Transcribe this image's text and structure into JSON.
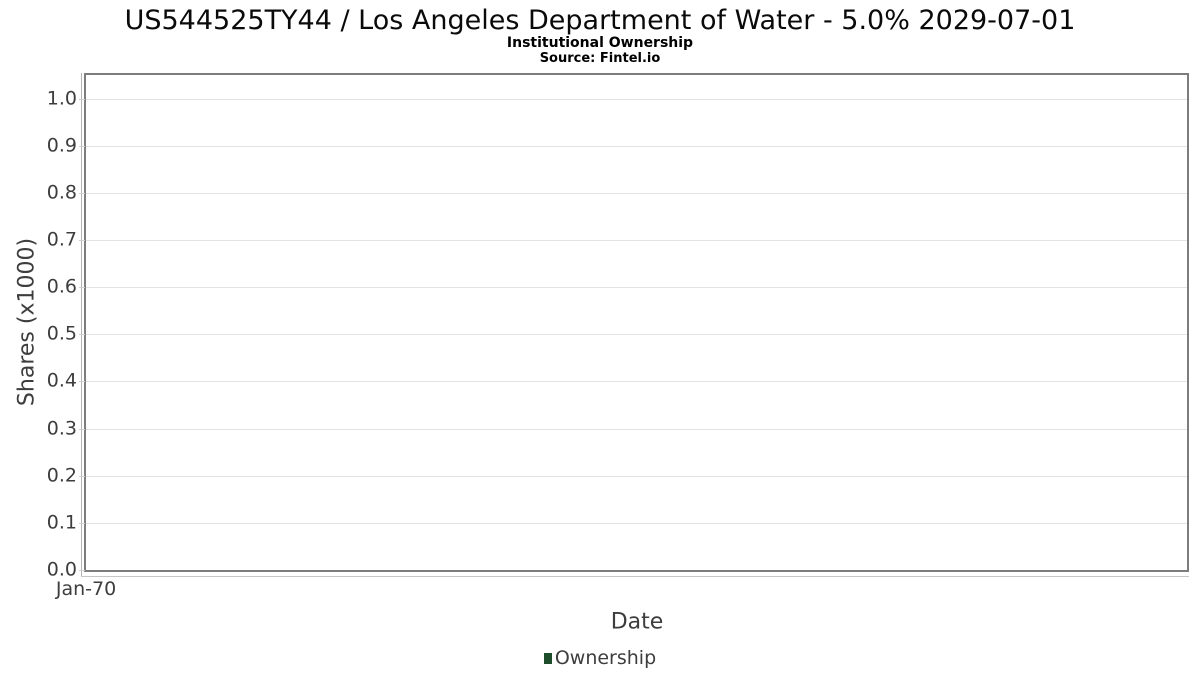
{
  "chart_data": {
    "type": "line",
    "title": "US544525TY44 / Los Angeles Department of Water - 5.0% 2029-07-01",
    "subtitle": "Institutional Ownership",
    "source": "Source: Fintel.io",
    "xlabel": "Date",
    "ylabel": "Shares (x1000)",
    "ylim": [
      0,
      1.05
    ],
    "y_ticks": [
      "0.0",
      "0.1",
      "0.2",
      "0.3",
      "0.4",
      "0.5",
      "0.6",
      "0.7",
      "0.8",
      "0.9",
      "1.0"
    ],
    "x_ticks": [
      "Jan-70"
    ],
    "grid": true,
    "legend_position": "bottom",
    "series": [
      {
        "name": "Ownership",
        "color": "#1e4d2b",
        "x": [],
        "values": []
      }
    ]
  },
  "colors": {
    "plot_border": "#7d7d7d",
    "gridline": "#e3e3e3",
    "axis_line": "#b3b3b3",
    "tick_mark": "#cfcfcf",
    "text": "#3d3d3d",
    "title_text": "#0a0a0a",
    "series_ownership": "#1e4d2b",
    "background": "#ffffff"
  }
}
